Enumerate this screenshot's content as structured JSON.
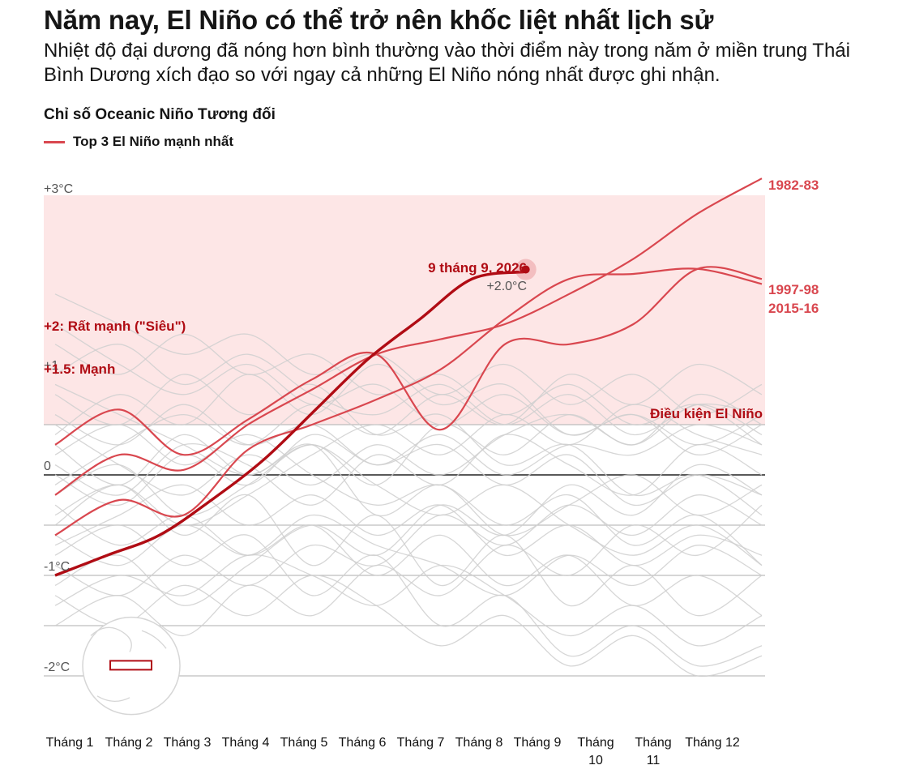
{
  "title": "Năm nay, El Niño có thể trở nên khốc liệt nhất lịch sử",
  "subtitle": "Nhiệt độ đại dương đã nóng hơn bình thường vào thời điểm này trong năm ở miền trung Thái Bình Dương xích đạo so với ngay cả những El Niño nóng nhất được ghi nhận.",
  "chart_label": "Chỉ số Oceanic Niño Tương đối",
  "legend_label": "Top 3 El Niño mạnh nhất",
  "colors": {
    "highlight": "#d9474f",
    "current": "#b00c14",
    "background_lines": "#cfcfcf",
    "elnino_zone": "#fde6e6"
  },
  "chart_data": {
    "type": "line",
    "x": [
      "Tháng 1",
      "Tháng 2",
      "Tháng 3",
      "Tháng 4",
      "Tháng 5",
      "Tháng 6",
      "Tháng 7",
      "Tháng 8",
      "Tháng 9",
      "Tháng 10",
      "Tháng 11",
      "Tháng 12"
    ],
    "y_ticks": [
      "+3°C",
      "+1",
      "0",
      "-1°C",
      "-2°C"
    ],
    "ylim": [
      -2.2,
      3.0
    ],
    "grid": true,
    "thresholds": [
      {
        "label": "+2: Rất mạnh (\"Siêu\")",
        "value": 2.0
      },
      {
        "label": "+1.5: Mạnh",
        "value": 1.5
      },
      {
        "label": "Điều kiện El Niño",
        "value": 0.5
      }
    ],
    "series": [
      {
        "name": "1982-83",
        "values": [
          -0.2,
          0.2,
          0.05,
          0.5,
          0.85,
          1.2,
          1.35,
          1.5,
          1.8,
          2.15,
          2.6,
          2.95
        ]
      },
      {
        "name": "1997-98",
        "values": [
          -0.6,
          -0.25,
          -0.4,
          0.25,
          0.5,
          0.75,
          1.05,
          1.55,
          1.95,
          2.0,
          2.05,
          1.9
        ]
      },
      {
        "name": "2015-16",
        "values": [
          0.3,
          0.65,
          0.2,
          0.55,
          0.95,
          1.2,
          0.45,
          1.3,
          1.3,
          1.5,
          2.05,
          1.95
        ]
      }
    ],
    "current": {
      "name": "2026",
      "label": "9 tháng 9, 2026",
      "value_label": "+2.0°C",
      "values": [
        -1.0,
        -0.8,
        -0.6,
        -0.25,
        0.15,
        0.65,
        1.15,
        1.55,
        1.95,
        2.02
      ]
    },
    "background_series": [
      [
        0.1,
        -0.2,
        0.3,
        0.1,
        -0.3,
        0.2,
        -0.1,
        0.4,
        0.1,
        -0.2,
        0.3,
        0.0
      ],
      [
        -0.5,
        -0.1,
        -0.6,
        -0.2,
        -0.9,
        -0.4,
        -1.1,
        -0.6,
        -1.3,
        -0.9,
        -1.4,
        -1.0
      ],
      [
        0.4,
        0.8,
        0.5,
        1.0,
        0.6,
        1.1,
        0.7,
        0.9,
        0.4,
        0.6,
        0.2,
        0.5
      ],
      [
        -1.1,
        -0.8,
        -1.3,
        -0.9,
        -0.5,
        -0.8,
        -0.3,
        -0.6,
        -0.1,
        -0.4,
        0.1,
        -0.2
      ],
      [
        0.8,
        0.5,
        1.0,
        0.6,
        0.9,
        0.4,
        0.6,
        0.1,
        0.3,
        -0.2,
        0.0,
        -0.4
      ],
      [
        -0.2,
        0.1,
        -0.4,
        -0.1,
        0.3,
        -0.1,
        0.5,
        0.2,
        0.6,
        0.3,
        0.8,
        0.5
      ],
      [
        -0.8,
        -0.5,
        -0.9,
        -0.6,
        -1.2,
        -0.8,
        -1.5,
        -1.2,
        -1.8,
        -1.5,
        -1.9,
        -1.7
      ],
      [
        1.3,
        1.0,
        1.4,
        1.0,
        1.2,
        0.8,
        1.0,
        0.6,
        0.9,
        0.5,
        0.7,
        0.3
      ],
      [
        -1.5,
        -1.2,
        -1.6,
        -1.1,
        -1.4,
        -0.9,
        -1.2,
        -0.7,
        -1.0,
        -0.5,
        -0.8,
        -0.3
      ],
      [
        0.2,
        0.5,
        0.1,
        0.4,
        0.0,
        -0.3,
        -0.1,
        -0.5,
        -0.2,
        -0.7,
        -0.4,
        -0.9
      ],
      [
        1.8,
        1.5,
        1.2,
        1.4,
        1.0,
        1.2,
        0.8,
        1.1,
        0.7,
        1.0,
        0.6,
        0.9
      ],
      [
        -0.3,
        -0.7,
        -0.4,
        -0.8,
        -0.5,
        -1.0,
        -0.6,
        -1.1,
        -0.8,
        -1.3,
        -1.0,
        -1.4
      ],
      [
        0.6,
        0.3,
        0.7,
        0.3,
        0.5,
        0.1,
        0.4,
        0.0,
        0.3,
        0.2,
        0.5,
        0.3
      ],
      [
        -0.9,
        -1.2,
        -0.8,
        -1.1,
        -0.7,
        -0.9,
        -0.4,
        -0.7,
        -0.3,
        -0.6,
        -0.2,
        -0.5
      ],
      [
        1.0,
        1.3,
        0.9,
        1.2,
        0.8,
        0.6,
        0.9,
        0.5,
        0.8,
        0.4,
        0.7,
        0.6
      ],
      [
        -1.3,
        -1.0,
        -1.2,
        -0.8,
        -1.0,
        -1.3,
        -0.9,
        -1.2,
        -1.6,
        -1.3,
        -1.7,
        -1.4
      ],
      [
        0.0,
        -0.3,
        0.2,
        -0.1,
        0.4,
        0.1,
        0.3,
        -0.1,
        0.2,
        -0.3,
        0.0,
        -0.2
      ],
      [
        -0.6,
        -0.9,
        -0.5,
        -0.8,
        -0.4,
        -0.7,
        -0.9,
        -1.2,
        -0.8,
        -1.1,
        -0.7,
        -1.0
      ],
      [
        0.5,
        0.1,
        -0.2,
        0.2,
        -0.1,
        0.3,
        0.0,
        0.4,
        0.6,
        0.3,
        0.7,
        0.4
      ],
      [
        -0.1,
        0.3,
        0.6,
        0.3,
        0.7,
        0.4,
        0.8,
        0.5,
        1.0,
        0.7,
        1.1,
        0.8
      ],
      [
        -0.7,
        -0.4,
        -0.1,
        -0.5,
        -0.2,
        -0.6,
        -0.3,
        -0.8,
        -0.5,
        -0.9,
        -0.6,
        -0.8
      ],
      [
        0.3,
        -0.1,
        0.4,
        0.0,
        0.3,
        -0.4,
        -0.1,
        -0.6,
        -0.3,
        0.0,
        -0.4,
        -0.1
      ],
      [
        -1.2,
        -1.5,
        -1.1,
        -1.4,
        -1.0,
        -1.3,
        -1.7,
        -1.4,
        -1.9,
        -1.6,
        -2.0,
        -1.8
      ],
      [
        1.5,
        1.1,
        0.8,
        1.1,
        0.7,
        0.9,
        0.5,
        0.8,
        0.4,
        0.6,
        0.3,
        0.6
      ],
      [
        -0.4,
        -0.1,
        -0.5,
        -0.2,
        0.2,
        0.5,
        0.2,
        0.6,
        0.3,
        0.7,
        0.4,
        0.2
      ],
      [
        0.9,
        0.6,
        0.3,
        0.0,
        0.3,
        -0.1,
        -0.4,
        -0.1,
        -0.5,
        -0.8,
        -0.5,
        -0.9
      ]
    ]
  }
}
